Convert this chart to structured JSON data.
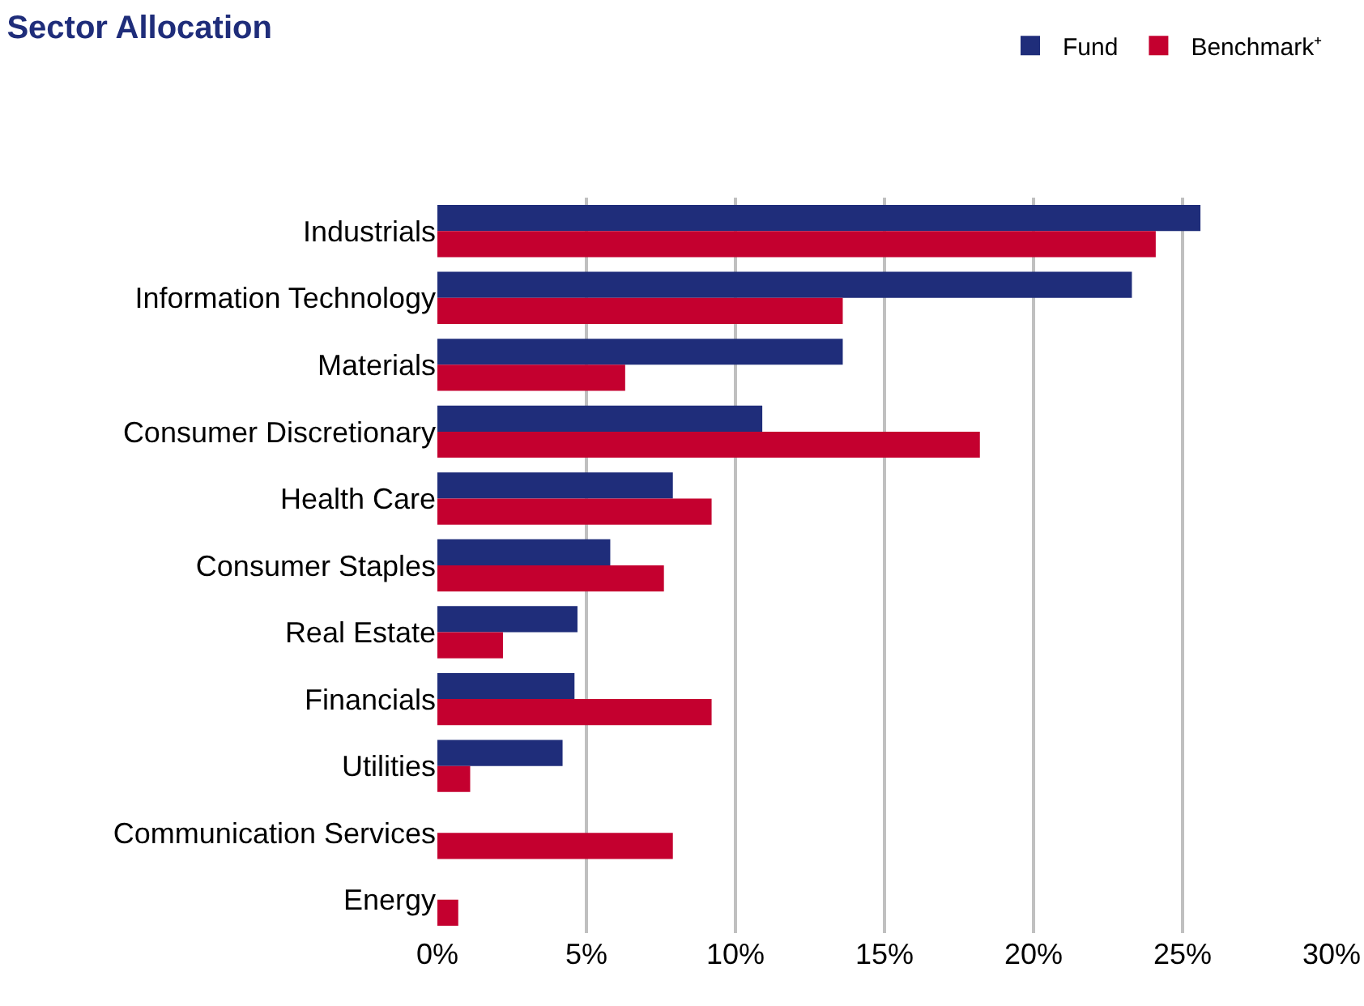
{
  "chart_data": {
    "type": "bar",
    "orientation": "horizontal",
    "title": "Sector Allocation",
    "categories": [
      "Industrials",
      "Information Technology",
      "Materials",
      "Consumer Discretionary",
      "Health Care",
      "Consumer Staples",
      "Real Estate",
      "Financials",
      "Utilities",
      "Communication Services",
      "Energy"
    ],
    "series": [
      {
        "name": "Fund",
        "color": "#1f2d7a",
        "values": [
          25.6,
          23.3,
          13.6,
          10.9,
          7.9,
          5.8,
          4.7,
          4.6,
          4.2,
          null,
          null
        ]
      },
      {
        "name": "Benchmark⁺",
        "color": "#c4002f",
        "values": [
          24.1,
          13.6,
          6.3,
          18.2,
          9.2,
          7.6,
          2.2,
          9.2,
          1.1,
          7.9,
          0.7
        ]
      }
    ],
    "xlim": [
      0,
      30
    ],
    "xticks": [
      {
        "value": 0,
        "label": "0%"
      },
      {
        "value": 5,
        "label": "5%"
      },
      {
        "value": 10,
        "label": "10%"
      },
      {
        "value": 15,
        "label": "15%"
      },
      {
        "value": 20,
        "label": "20%"
      },
      {
        "value": 25,
        "label": "25%"
      },
      {
        "value": 30,
        "label": "30%"
      }
    ],
    "grid": "x",
    "legend": "top right"
  }
}
